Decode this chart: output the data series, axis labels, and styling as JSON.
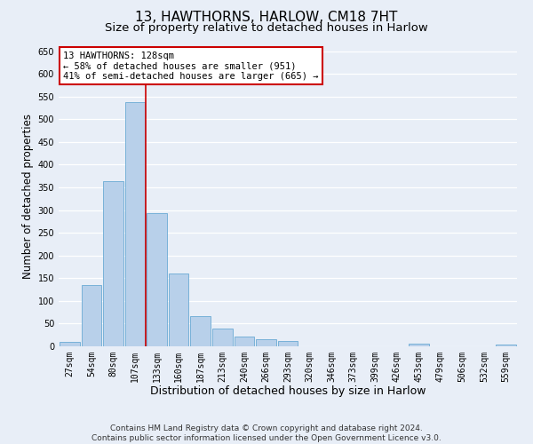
{
  "title": "13, HAWTHORNS, HARLOW, CM18 7HT",
  "subtitle": "Size of property relative to detached houses in Harlow",
  "xlabel": "Distribution of detached houses by size in Harlow",
  "ylabel": "Number of detached properties",
  "bar_labels": [
    "27sqm",
    "54sqm",
    "80sqm",
    "107sqm",
    "133sqm",
    "160sqm",
    "187sqm",
    "213sqm",
    "240sqm",
    "266sqm",
    "293sqm",
    "320sqm",
    "346sqm",
    "373sqm",
    "399sqm",
    "426sqm",
    "453sqm",
    "479sqm",
    "506sqm",
    "532sqm",
    "559sqm"
  ],
  "bar_heights": [
    10,
    135,
    363,
    537,
    293,
    160,
    67,
    40,
    22,
    15,
    12,
    0,
    0,
    0,
    0,
    0,
    5,
    0,
    0,
    0,
    4
  ],
  "bar_color": "#b8d0ea",
  "bar_edge_color": "#6aaad4",
  "vline_color": "#cc0000",
  "annotation_line1": "13 HAWTHORNS: 128sqm",
  "annotation_line2": "← 58% of detached houses are smaller (951)",
  "annotation_line3": "41% of semi-detached houses are larger (665) →",
  "annotation_box_facecolor": "#ffffff",
  "annotation_box_edgecolor": "#cc0000",
  "ylim": [
    0,
    660
  ],
  "yticks": [
    0,
    50,
    100,
    150,
    200,
    250,
    300,
    350,
    400,
    450,
    500,
    550,
    600,
    650
  ],
  "bg_color": "#e8eef7",
  "grid_color": "#ffffff",
  "title_fontsize": 11,
  "subtitle_fontsize": 9.5,
  "xlabel_fontsize": 9,
  "ylabel_fontsize": 8.5,
  "tick_fontsize": 7,
  "annot_fontsize": 7.5,
  "footer_fontsize": 6.5,
  "footer_line1": "Contains HM Land Registry data © Crown copyright and database right 2024.",
  "footer_line2": "Contains public sector information licensed under the Open Government Licence v3.0."
}
